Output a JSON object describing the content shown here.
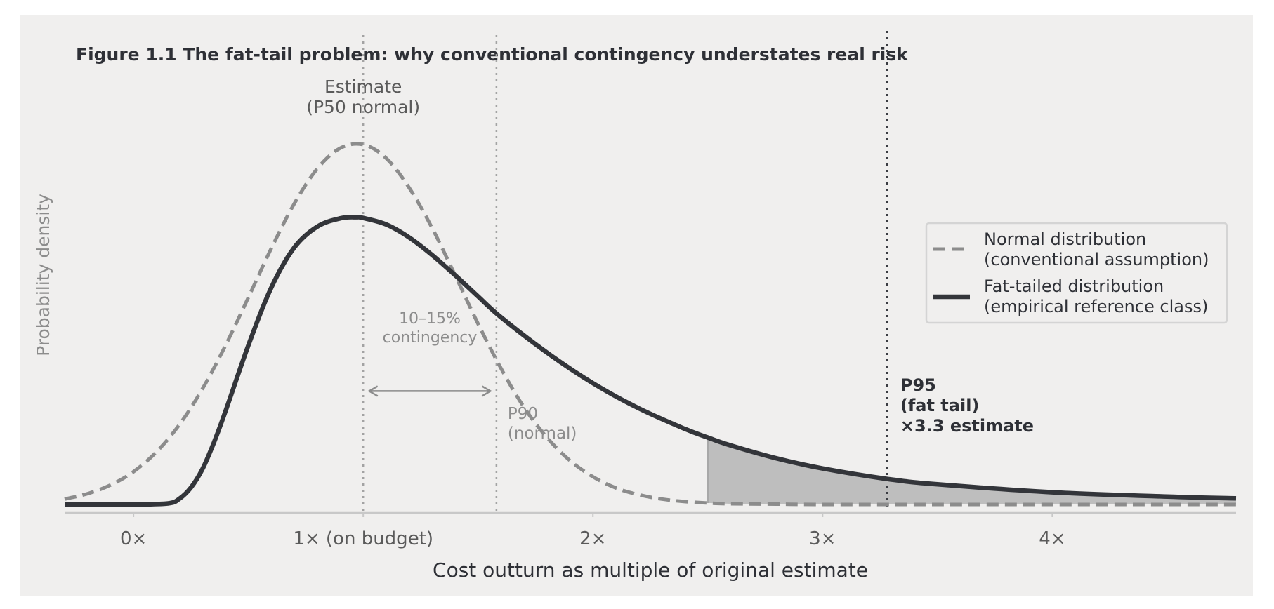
{
  "chart_data": {
    "type": "line",
    "title": "Figure 1.1  The fat-tail problem: why conventional contingency understates real risk",
    "xlabel": "Cost outturn as multiple of original estimate",
    "ylabel": "Probability density",
    "xlim": [
      -0.3,
      4.8
    ],
    "ylim": [
      0,
      1.0
    ],
    "grid": false,
    "legend_position": "right",
    "xticks": [
      {
        "value": 0,
        "label": "0×"
      },
      {
        "value": 1,
        "label": "1× (on budget)"
      },
      {
        "value": 2,
        "label": "2×"
      },
      {
        "value": 3,
        "label": "3×"
      },
      {
        "value": 4,
        "label": "4×"
      }
    ],
    "series": [
      {
        "name": "Normal distribution\n(conventional assumption)",
        "style": "dashed",
        "color": "#8c8c8c",
        "x": [
          -0.3,
          -0.2,
          -0.1,
          0.0,
          0.1,
          0.2,
          0.3,
          0.4,
          0.5,
          0.6,
          0.7,
          0.8,
          0.9,
          1.0,
          1.1,
          1.2,
          1.3,
          1.4,
          1.5,
          1.6,
          1.7,
          1.8,
          1.9,
          2.0,
          2.1,
          2.2,
          2.3,
          2.4,
          2.5,
          2.6,
          2.8,
          3.0,
          3.5,
          4.0,
          4.5,
          4.8
        ],
        "y": [
          0.015,
          0.03,
          0.054,
          0.091,
          0.146,
          0.222,
          0.321,
          0.441,
          0.575,
          0.712,
          0.836,
          0.933,
          0.99,
          1.0,
          0.962,
          0.88,
          0.768,
          0.637,
          0.502,
          0.378,
          0.27,
          0.186,
          0.122,
          0.077,
          0.046,
          0.027,
          0.015,
          0.008,
          0.004,
          0.002,
          0.001,
          0.0,
          0.0,
          0.0,
          0.0,
          0.0
        ]
      },
      {
        "name": "Fat-tailed distribution\n(empirical reference class)",
        "style": "solid",
        "color": "#33353a",
        "x": [
          -0.3,
          0.0,
          0.15,
          0.2,
          0.25,
          0.3,
          0.35,
          0.4,
          0.5,
          0.6,
          0.7,
          0.8,
          0.9,
          0.97,
          1.0,
          1.1,
          1.2,
          1.3,
          1.4,
          1.5,
          1.6,
          1.8,
          2.0,
          2.2,
          2.4,
          2.5,
          2.6,
          2.8,
          3.0,
          3.28,
          3.5,
          4.0,
          4.5,
          4.8
        ],
        "y": [
          0.0,
          0.0,
          0.003,
          0.016,
          0.047,
          0.098,
          0.172,
          0.258,
          0.442,
          0.603,
          0.714,
          0.772,
          0.795,
          0.798,
          0.796,
          0.778,
          0.742,
          0.693,
          0.637,
          0.578,
          0.52,
          0.422,
          0.337,
          0.267,
          0.21,
          0.186,
          0.164,
          0.128,
          0.1,
          0.071,
          0.056,
          0.034,
          0.022,
          0.017
        ]
      }
    ],
    "vlines": [
      {
        "x": 1.0,
        "style": "dotted",
        "label": "Estimate\n(P50 normal)"
      },
      {
        "x": 1.58,
        "style": "dotted",
        "label": "P90\n(normal)"
      },
      {
        "x": 3.28,
        "style": "dotted-dark",
        "label": "P95\n(fat tail)\n×3.3 estimate"
      }
    ],
    "annotations": [
      {
        "text": "10–15%\ncontingency",
        "arrow_from": 1.02,
        "arrow_to": 1.56,
        "y": 0.315
      }
    ],
    "shaded_tail": {
      "from": 2.5,
      "to": 4.8,
      "between": "normal and fat-tailed",
      "color": "#bebebe"
    }
  }
}
